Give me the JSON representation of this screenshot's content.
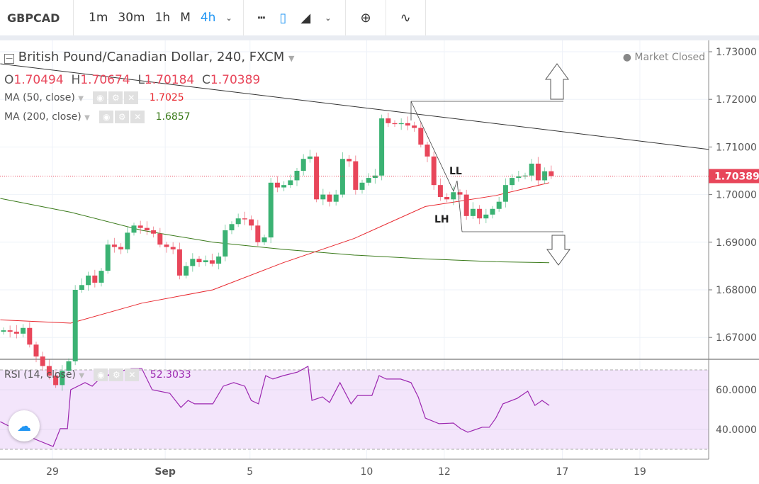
{
  "toolbar": {
    "symbol": "GBPCAD",
    "intervals": [
      "1m",
      "30m",
      "1h",
      "M",
      "4h"
    ],
    "active_interval": "4h"
  },
  "legend": {
    "title": "British Pound/Canadian Dollar, 240, FXCM",
    "o_label": "O",
    "o": "1.70494",
    "h_label": "H",
    "h": "1.70674",
    "l_label": "L",
    "l": "1.70184",
    "c_label": "C",
    "c": "1.70389",
    "ma50": {
      "label": "MA (50, close)",
      "value": "1.7025"
    },
    "ma200": {
      "label": "MA (200, close)",
      "value": "1.6857"
    },
    "rsi": {
      "label": "RSI (14, close)",
      "value": "52.3033"
    }
  },
  "market_status": "Market Closed",
  "last_price": "1.70389",
  "annotations": {
    "ll": "LL",
    "lh": "LH"
  },
  "colors": {
    "up": "#3bb273",
    "down": "#e8465a",
    "ma50": "#e8282f",
    "ma200": "#3a7a1a",
    "rsi": "#9c27b0",
    "accent": "#2196f3"
  },
  "chart_data": {
    "type": "candlestick",
    "price_ticks": [
      "1.73000",
      "1.72000",
      "1.71000",
      "1.70000",
      "1.69000",
      "1.68000",
      "1.67000"
    ],
    "rsi_ticks": [
      "60.0000",
      "40.0000"
    ],
    "time_ticks": [
      {
        "label": "29",
        "i": 7.5
      },
      {
        "label": "Sep",
        "i": 24.8
      },
      {
        "label": "5",
        "i": 37.8
      },
      {
        "label": "10",
        "i": 55.7
      },
      {
        "label": "12",
        "i": 67.6
      },
      {
        "label": "17",
        "i": 85.7
      },
      {
        "label": "19",
        "i": 97.6
      }
    ],
    "first_open": 1.6712,
    "closes": [
      1.6715,
      1.6712,
      1.6708,
      1.672,
      1.6685,
      1.666,
      1.664,
      1.662,
      1.66,
      1.663,
      1.665,
      1.68,
      1.681,
      1.683,
      1.6815,
      1.684,
      1.6895,
      1.689,
      1.6885,
      1.692,
      1.6935,
      1.693,
      1.6925,
      1.6918,
      1.6895,
      1.689,
      1.6885,
      1.683,
      1.685,
      1.6865,
      1.6858,
      1.6862,
      1.6855,
      1.687,
      1.6925,
      1.6938,
      1.695,
      1.6948,
      1.6935,
      1.69,
      1.691,
      1.7025,
      1.7015,
      1.702,
      1.703,
      1.705,
      1.7075,
      1.708,
      1.699,
      1.7,
      1.6985,
      1.7,
      1.7075,
      1.707,
      1.701,
      1.7025,
      1.7035,
      1.704,
      1.716,
      1.715,
      1.7148,
      1.715,
      1.7145,
      1.714,
      1.7105,
      1.708,
      1.702,
      1.6995,
      1.699,
      1.7005,
      1.7,
      1.6955,
      1.697,
      1.695,
      1.6958,
      1.697,
      1.6985,
      1.702,
      1.7035,
      1.7038,
      1.704,
      1.7065,
      1.703,
      1.7049,
      1.70389
    ],
    "ma50": [
      [
        -0.5,
        1.6737
      ],
      [
        10.3,
        1.673
      ],
      [
        21.2,
        1.6772
      ],
      [
        32.1,
        1.68
      ],
      [
        42.9,
        1.6857
      ],
      [
        53.8,
        1.6908
      ],
      [
        64.7,
        1.6975
      ],
      [
        75.5,
        1.6998
      ],
      [
        83.7,
        1.7025
      ]
    ],
    "ma200": [
      [
        -0.5,
        1.6992
      ],
      [
        10.3,
        1.6963
      ],
      [
        21.2,
        1.6925
      ],
      [
        32.1,
        1.69
      ],
      [
        42.9,
        1.6885
      ],
      [
        53.8,
        1.6873
      ],
      [
        64.7,
        1.6865
      ],
      [
        75.5,
        1.6859
      ],
      [
        83.7,
        1.6857
      ]
    ],
    "trendline": [
      [
        -0.5,
        1.72747
      ],
      [
        108.2,
        1.70949
      ]
    ],
    "rsi": [
      [
        -0.5,
        43.9
      ],
      [
        1.6,
        40.4
      ],
      [
        4.9,
        35
      ],
      [
        7.6,
        31.4
      ],
      [
        8.7,
        40.4
      ],
      [
        9.8,
        40.4
      ],
      [
        10.3,
        60
      ],
      [
        12.5,
        63.6
      ],
      [
        13.6,
        61.8
      ],
      [
        14.7,
        65.4
      ],
      [
        15.8,
        67.1
      ],
      [
        17.4,
        68.9
      ],
      [
        19.6,
        70.7
      ],
      [
        21.2,
        70.7
      ],
      [
        22.8,
        60
      ],
      [
        25.5,
        58.2
      ],
      [
        27.2,
        51.1
      ],
      [
        28.3,
        54.6
      ],
      [
        29.3,
        52.9
      ],
      [
        32.1,
        52.9
      ],
      [
        33.7,
        61.8
      ],
      [
        35.3,
        63.6
      ],
      [
        37,
        61.8
      ],
      [
        38,
        54.6
      ],
      [
        39.1,
        52.9
      ],
      [
        40.2,
        67.1
      ],
      [
        41.3,
        65.4
      ],
      [
        42.9,
        67.1
      ],
      [
        45.1,
        68.9
      ],
      [
        46.7,
        71.8
      ],
      [
        47.3,
        54.6
      ],
      [
        48.9,
        56.4
      ],
      [
        50,
        53.6
      ],
      [
        51.6,
        63.6
      ],
      [
        53.3,
        52.9
      ],
      [
        54.3,
        57.1
      ],
      [
        56.5,
        57.1
      ],
      [
        57.6,
        67.1
      ],
      [
        58.7,
        65.4
      ],
      [
        60.9,
        65.4
      ],
      [
        62.5,
        63.6
      ],
      [
        63.6,
        56.4
      ],
      [
        64.7,
        45.7
      ],
      [
        66.8,
        42.9
      ],
      [
        69,
        43.2
      ],
      [
        70.1,
        40.4
      ],
      [
        71.2,
        38.6
      ],
      [
        73.4,
        41.1
      ],
      [
        74.5,
        41.1
      ],
      [
        75.5,
        45.7
      ],
      [
        76.6,
        52.9
      ],
      [
        78.8,
        55.7
      ],
      [
        80.4,
        59.3
      ],
      [
        81.5,
        52.1
      ],
      [
        82.6,
        54.6
      ],
      [
        83.7,
        52.1
      ]
    ],
    "rsi_bands": [
      70,
      30
    ]
  }
}
